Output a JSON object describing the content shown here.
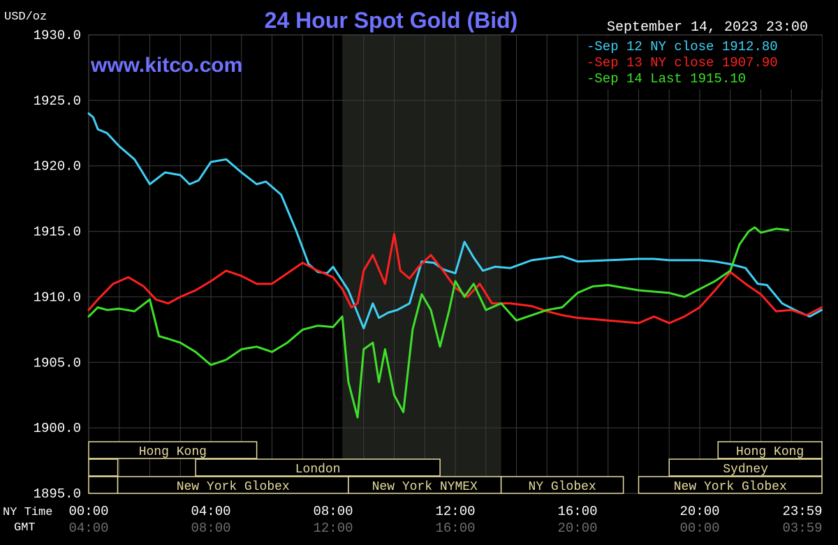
{
  "chart_data": {
    "type": "line",
    "title": "24 Hour Spot Gold (Bid)",
    "watermark": "www.kitco.com",
    "ylabel": "USD/oz",
    "date_label": "September 14, 2023 23:00",
    "ylim": [
      1895,
      1930
    ],
    "xlim_hours": [
      0,
      24
    ],
    "y_ticks": [
      "1930.0",
      "1925.0",
      "1920.0",
      "1915.0",
      "1910.0",
      "1905.0",
      "1900.0",
      "1895.0"
    ],
    "x_row_labels": {
      "ny": "NY Time",
      "gmt": "GMT"
    },
    "x_ticks_ny": [
      "00:00",
      "04:00",
      "08:00",
      "12:00",
      "16:00",
      "20:00",
      "23:59"
    ],
    "x_ticks_gmt": [
      "04:00",
      "08:00",
      "12:00",
      "16:00",
      "20:00",
      "00:00",
      "03:59"
    ],
    "grid": true,
    "legend_position": "top-right",
    "colors": {
      "background": "#000000",
      "grid": "#3c3c3c",
      "axis_text": "#ffffff",
      "tick_muted": "#6e6e6e",
      "title": "#6e72ff",
      "nymex_shade": "#1d1f1a",
      "session": "#e8dca0"
    },
    "sessions": [
      {
        "label": "Hong Kong",
        "row": 1,
        "start": 0.0,
        "end": 5.5
      },
      {
        "label": "Hong Kong",
        "row": 1,
        "start": 20.6,
        "end": 24.0
      },
      {
        "label": "",
        "row": 2,
        "start": 0.0,
        "end": 0.95
      },
      {
        "label": "London",
        "row": 2,
        "start": 3.5,
        "end": 11.5
      },
      {
        "label": "Sydney",
        "row": 2,
        "start": 19.0,
        "end": 24.0
      },
      {
        "label": "",
        "row": 3,
        "start": 0.0,
        "end": 0.95
      },
      {
        "label": "New York Globex",
        "row": 3,
        "start": 0.95,
        "end": 8.5
      },
      {
        "label": "New York NYMEX",
        "row": 3,
        "start": 8.5,
        "end": 13.5
      },
      {
        "label": "NY Globex",
        "row": 3,
        "start": 13.5,
        "end": 17.5
      },
      {
        "label": "New York Globex",
        "row": 3,
        "start": 18.0,
        "end": 24.0
      }
    ],
    "nymex_session": [
      8.3,
      13.5
    ],
    "series": [
      {
        "name": "Sep 12 NY close 1912.80",
        "color": "#3fd0f6",
        "x": [
          0.0,
          0.15,
          0.3,
          0.6,
          1.0,
          1.5,
          2.0,
          2.5,
          3.0,
          3.3,
          3.6,
          4.0,
          4.5,
          5.0,
          5.5,
          5.8,
          6.3,
          6.8,
          7.2,
          7.5,
          7.8,
          8.0,
          8.5,
          9.0,
          9.3,
          9.5,
          9.8,
          10.1,
          10.5,
          10.9,
          11.3,
          11.6,
          12.0,
          12.3,
          12.6,
          12.9,
          13.3,
          13.8,
          14.5,
          15.5,
          16.0,
          17.0,
          18.0,
          18.5,
          19.0,
          20.0,
          20.5,
          21.0,
          21.5,
          21.9,
          22.2,
          22.7,
          23.2,
          23.6,
          23.99
        ],
        "y": [
          1924.0,
          1923.7,
          1922.8,
          1922.5,
          1921.5,
          1920.5,
          1918.6,
          1919.5,
          1919.3,
          1918.6,
          1918.9,
          1920.3,
          1920.5,
          1919.5,
          1918.6,
          1918.8,
          1917.8,
          1915.0,
          1912.5,
          1911.9,
          1911.8,
          1912.3,
          1910.5,
          1907.6,
          1909.5,
          1908.4,
          1908.8,
          1909.0,
          1909.5,
          1912.7,
          1912.6,
          1912.1,
          1911.8,
          1914.2,
          1913.0,
          1912.0,
          1912.3,
          1912.2,
          1912.8,
          1913.1,
          1912.7,
          1912.8,
          1912.9,
          1912.9,
          1912.8,
          1912.8,
          1912.7,
          1912.5,
          1912.2,
          1911.0,
          1910.9,
          1909.5,
          1908.9,
          1908.5,
          1909.0
        ]
      },
      {
        "name": "Sep 13 NY close 1907.90",
        "color": "#ff2020",
        "x": [
          0.0,
          0.3,
          0.8,
          1.3,
          1.8,
          2.2,
          2.6,
          3.0,
          3.5,
          4.0,
          4.5,
          5.0,
          5.5,
          6.0,
          6.5,
          7.0,
          7.5,
          8.0,
          8.3,
          8.6,
          8.8,
          9.0,
          9.3,
          9.7,
          10.0,
          10.2,
          10.5,
          10.8,
          11.2,
          11.6,
          12.0,
          12.4,
          12.8,
          13.2,
          13.8,
          14.5,
          15.0,
          15.5,
          16.0,
          16.5,
          17.0,
          17.5,
          18.0,
          18.5,
          19.0,
          19.5,
          20.0,
          20.5,
          21.0,
          21.5,
          22.0,
          22.5,
          23.0,
          23.5,
          23.99
        ],
        "y": [
          1909.0,
          1909.8,
          1911.0,
          1911.5,
          1910.8,
          1909.8,
          1909.5,
          1910.0,
          1910.5,
          1911.2,
          1912.0,
          1911.6,
          1911.0,
          1911.0,
          1911.8,
          1912.6,
          1912.0,
          1911.5,
          1910.6,
          1909.2,
          1909.5,
          1912.0,
          1913.2,
          1911.0,
          1914.8,
          1912.0,
          1911.4,
          1912.3,
          1913.2,
          1912.0,
          1910.7,
          1910.0,
          1911.0,
          1909.5,
          1909.5,
          1909.3,
          1908.9,
          1908.6,
          1908.4,
          1908.3,
          1908.2,
          1908.1,
          1908.0,
          1908.5,
          1908.0,
          1908.5,
          1909.2,
          1910.5,
          1911.9,
          1911.0,
          1910.2,
          1908.9,
          1909.0,
          1908.6,
          1909.2
        ]
      },
      {
        "name": "Sep 14 Last 1915.10",
        "color": "#3fe02a",
        "x": [
          0.0,
          0.3,
          0.6,
          1.0,
          1.5,
          2.0,
          2.3,
          2.6,
          3.0,
          3.5,
          4.0,
          4.5,
          5.0,
          5.5,
          6.0,
          6.5,
          7.0,
          7.5,
          8.0,
          8.3,
          8.5,
          8.8,
          9.0,
          9.3,
          9.5,
          9.7,
          10.0,
          10.3,
          10.6,
          10.9,
          11.2,
          11.5,
          11.8,
          12.0,
          12.3,
          12.6,
          13.0,
          13.5,
          14.0,
          14.5,
          15.0,
          15.5,
          16.0,
          16.5,
          17.0,
          18.0,
          19.0,
          19.5,
          20.0,
          20.5,
          21.0,
          21.3,
          21.6,
          21.8,
          22.0,
          22.5,
          22.9
        ],
        "y": [
          1908.5,
          1909.2,
          1909.0,
          1909.1,
          1908.9,
          1909.8,
          1907.0,
          1906.8,
          1906.5,
          1905.8,
          1904.8,
          1905.2,
          1906.0,
          1906.2,
          1905.8,
          1906.5,
          1907.5,
          1907.8,
          1907.7,
          1908.5,
          1903.5,
          1900.8,
          1906.0,
          1906.5,
          1903.5,
          1906.0,
          1902.5,
          1901.2,
          1907.5,
          1910.2,
          1909.0,
          1906.2,
          1909.0,
          1911.2,
          1910.0,
          1911.0,
          1909.0,
          1909.5,
          1908.2,
          1908.6,
          1909.0,
          1909.2,
          1910.3,
          1910.8,
          1910.9,
          1910.5,
          1910.3,
          1910.0,
          1910.6,
          1911.2,
          1912.0,
          1914.0,
          1915.0,
          1915.3,
          1914.9,
          1915.2,
          1915.1
        ]
      }
    ]
  }
}
